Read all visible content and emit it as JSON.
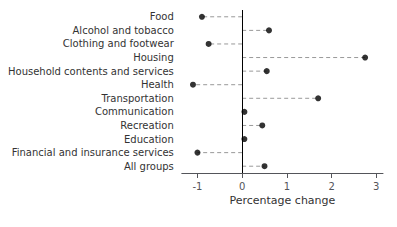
{
  "chart_data": {
    "type": "dot",
    "orientation": "horizontal",
    "categories": [
      "Food",
      "Alcohol and tobacco",
      "Clothing and footwear",
      "Housing",
      "Household contents and services",
      "Health",
      "Transportation",
      "Communication",
      "Recreation",
      "Education",
      "Financial and insurance services",
      "All groups"
    ],
    "values": [
      -0.9,
      0.6,
      -0.75,
      2.75,
      0.55,
      -1.1,
      1.7,
      0.05,
      0.45,
      0.05,
      -1.0,
      0.5
    ],
    "xlim": [
      -1.35,
      3.15
    ],
    "xticks": [
      -1,
      0,
      1,
      2,
      3
    ],
    "xlabel": "Percentage change",
    "color": "#000000",
    "line_style": "dashed",
    "grid": false
  }
}
